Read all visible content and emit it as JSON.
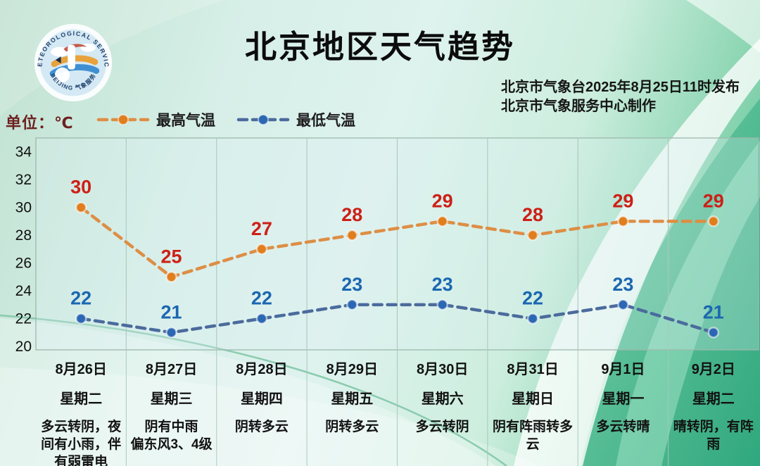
{
  "header": {
    "title": "北京地区天气趋势",
    "publish_line1": "北京市气象台2025年8月25日11时发布",
    "publish_line2": "北京市气象服务中心制作",
    "logo": {
      "arc_text_top": "METEOROLOGICAL SERVICE",
      "arc_text_bottom": "BEIJING 气象服务"
    }
  },
  "unit_label": "单位：℃",
  "legend": [
    {
      "label": "最高气温",
      "line_color": "#dd8e45",
      "marker_color": "#e07d1d"
    },
    {
      "label": "最低气温",
      "line_color": "#4b6b9d",
      "marker_color": "#2b67b3"
    }
  ],
  "chart_data": {
    "type": "line",
    "title": "北京地区天气趋势",
    "unit": "℃",
    "categories": [
      "8月26日",
      "8月27日",
      "8月28日",
      "8月29日",
      "8月30日",
      "8月31日",
      "9月1日",
      "9月2日"
    ],
    "weekdays": [
      "星期二",
      "星期三",
      "星期四",
      "星期五",
      "星期六",
      "星期日",
      "星期一",
      "星期二"
    ],
    "weather": [
      "多云转阴，夜间有小雨，伴有弱雷电",
      "阴有中雨\n偏东风3、4级",
      "阴转多云",
      "阴转多云",
      "多云转阴",
      "阴有阵雨转多云",
      "多云转晴",
      "晴转阴，有阵雨"
    ],
    "series": [
      {
        "name": "最高气温",
        "values": [
          30,
          25,
          27,
          28,
          29,
          28,
          29,
          29
        ],
        "line_color": "#dd8e45",
        "marker_color": "#e07d1d",
        "label_color": "#cd1f16"
      },
      {
        "name": "最低气温",
        "values": [
          22,
          21,
          22,
          23,
          23,
          22,
          23,
          21
        ],
        "line_color": "#4b6b9d",
        "marker_color": "#2b67b3",
        "label_color": "#1b67b1"
      }
    ],
    "yticks": [
      34,
      32,
      30,
      28,
      26,
      24,
      22,
      20
    ],
    "ylim": [
      19.75,
      35
    ],
    "grid": "vertical",
    "legend_position": "top-left"
  }
}
